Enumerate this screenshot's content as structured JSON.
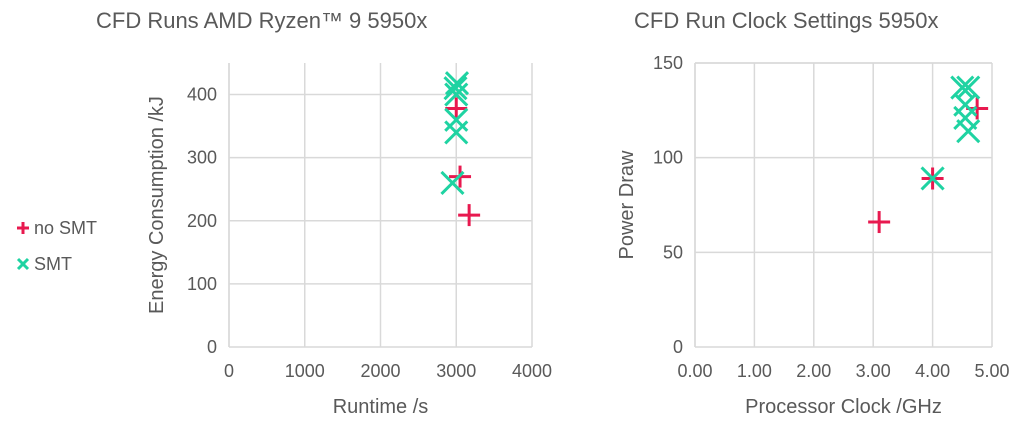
{
  "legend": {
    "items": [
      {
        "label": "no SMT",
        "marker": "plus",
        "color": "#e8194f"
      },
      {
        "label": "SMT",
        "marker": "x",
        "color": "#1fd3a2"
      }
    ]
  },
  "chart_data": [
    {
      "type": "scatter",
      "title": "CFD Runs AMD Ryzen™ 9 5950x",
      "xlabel": "Runtime /s",
      "ylabel": "Energy Consumption /kJ",
      "xlim": [
        0,
        4000
      ],
      "ylim": [
        0,
        450
      ],
      "xticks": [
        0,
        1000,
        2000,
        3000,
        4000
      ],
      "xtick_labels": [
        "0",
        "1000",
        "2000",
        "3000",
        "4000"
      ],
      "yticks": [
        0,
        100,
        200,
        300,
        400
      ],
      "ytick_labels": [
        "0",
        "100",
        "200",
        "300",
        "400"
      ],
      "grid": true,
      "legend_position": "left",
      "series": [
        {
          "name": "no SMT",
          "marker": "plus",
          "color": "#e8194f",
          "points": [
            [
              3000,
              378
            ],
            [
              3050,
              270
            ],
            [
              3170,
              209
            ]
          ]
        },
        {
          "name": "SMT",
          "marker": "x",
          "color": "#1fd3a2",
          "points": [
            [
              3010,
              418
            ],
            [
              2990,
              410
            ],
            [
              3000,
              400
            ],
            [
              3000,
              360
            ],
            [
              3000,
              340
            ],
            [
              2950,
              260
            ]
          ]
        }
      ]
    },
    {
      "type": "scatter",
      "title": "CFD Run Clock Settings 5950x",
      "xlabel": "Processor Clock /GHz",
      "ylabel": "Power Draw",
      "xlim": [
        0,
        5
      ],
      "ylim": [
        0,
        150
      ],
      "xticks": [
        0,
        1,
        2,
        3,
        4,
        5
      ],
      "xtick_labels": [
        "0.00",
        "1.00",
        "2.00",
        "3.00",
        "4.00",
        "5.00"
      ],
      "yticks": [
        0,
        50,
        100,
        150
      ],
      "ytick_labels": [
        "0",
        "50",
        "100",
        "150"
      ],
      "grid": true,
      "legend_position": "left",
      "series": [
        {
          "name": "no SMT",
          "marker": "plus",
          "color": "#e8194f",
          "points": [
            [
              3.1,
              66
            ],
            [
              4.0,
              89
            ],
            [
              4.75,
              126
            ]
          ]
        },
        {
          "name": "SMT",
          "marker": "x",
          "color": "#1fd3a2",
          "points": [
            [
              4.5,
              137
            ],
            [
              4.6,
              137
            ],
            [
              4.55,
              128
            ],
            [
              4.55,
              121
            ],
            [
              4.6,
              114
            ],
            [
              4.0,
              89
            ]
          ]
        }
      ]
    }
  ]
}
